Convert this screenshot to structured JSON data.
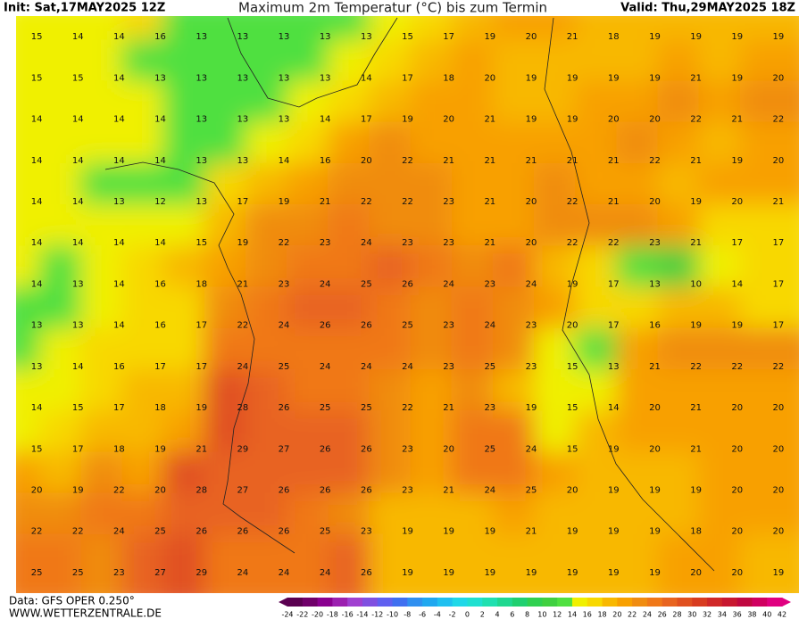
{
  "header": {
    "init": "Init: Sat,17MAY2025 12Z",
    "title": "Maximum 2m Temperatur (°C) bis zum Termin",
    "valid": "Valid: Thu,29MAY2025 18Z"
  },
  "footer": {
    "source": "Data: GFS OPER 0.250°",
    "site": "WWW.WETTERZENTRALE.DE"
  },
  "colorbar": {
    "ticks": [
      -24,
      -22,
      -20,
      -18,
      -16,
      -14,
      -12,
      -10,
      -8,
      -6,
      -4,
      -2,
      0,
      2,
      4,
      6,
      8,
      10,
      12,
      14,
      16,
      18,
      20,
      22,
      24,
      26,
      28,
      30,
      32,
      34,
      36,
      38,
      40,
      42
    ],
    "colors": [
      "#5a0050",
      "#70006a",
      "#8a0090",
      "#9c20b0",
      "#a040d0",
      "#8050e0",
      "#6060f0",
      "#4070f0",
      "#3090f0",
      "#20a8f0",
      "#20c0f0",
      "#20d8e8",
      "#20e0d0",
      "#20e0b0",
      "#20d890",
      "#20d070",
      "#30d050",
      "#40d040",
      "#50e040",
      "#f0f000",
      "#f8d800",
      "#f8b800",
      "#f8a000",
      "#f08c10",
      "#f07818",
      "#e86420",
      "#e05020",
      "#d83c20",
      "#d02828",
      "#c81830",
      "#c00840",
      "#d00060",
      "#e00080"
    ]
  },
  "map": {
    "values": [
      [
        15,
        14,
        14,
        16,
        13,
        13,
        13,
        13,
        13,
        15,
        17,
        19,
        20,
        21,
        18,
        19,
        19,
        19,
        19
      ],
      [
        15,
        15,
        14,
        13,
        13,
        13,
        13,
        13,
        14,
        17,
        18,
        20,
        19,
        19,
        19,
        19,
        21,
        19,
        20
      ],
      [
        14,
        14,
        14,
        14,
        13,
        13,
        13,
        14,
        17,
        19,
        20,
        21,
        19,
        19,
        20,
        20,
        22,
        21,
        22
      ],
      [
        14,
        14,
        14,
        14,
        13,
        13,
        14,
        16,
        20,
        22,
        21,
        21,
        21,
        21,
        21,
        22,
        21,
        19,
        20
      ],
      [
        14,
        14,
        13,
        12,
        13,
        17,
        19,
        21,
        22,
        22,
        23,
        21,
        20,
        22,
        21,
        20,
        19,
        20,
        21
      ],
      [
        14,
        14,
        14,
        14,
        15,
        19,
        22,
        23,
        24,
        23,
        23,
        21,
        20,
        22,
        22,
        23,
        21,
        17,
        17
      ],
      [
        14,
        13,
        14,
        16,
        18,
        21,
        23,
        24,
        25,
        26,
        24,
        23,
        24,
        19,
        17,
        13,
        10,
        14,
        17
      ],
      [
        13,
        13,
        14,
        16,
        17,
        22,
        24,
        26,
        26,
        25,
        23,
        24,
        23,
        20,
        17,
        16,
        19,
        19,
        17
      ],
      [
        13,
        14,
        16,
        17,
        17,
        24,
        25,
        24,
        24,
        24,
        23,
        25,
        23,
        15,
        13,
        21,
        22,
        22,
        22
      ],
      [
        14,
        15,
        17,
        18,
        19,
        28,
        26,
        25,
        25,
        22,
        21,
        23,
        19,
        15,
        14,
        20,
        21,
        20,
        20
      ],
      [
        15,
        17,
        18,
        19,
        21,
        29,
        27,
        26,
        26,
        23,
        20,
        25,
        24,
        15,
        19,
        20,
        21,
        20,
        20
      ],
      [
        20,
        19,
        22,
        20,
        28,
        27,
        26,
        26,
        26,
        23,
        21,
        24,
        25,
        20,
        19,
        19,
        19,
        20,
        20
      ],
      [
        22,
        22,
        24,
        25,
        26,
        26,
        26,
        25,
        23,
        19,
        19,
        19,
        21,
        19,
        19,
        19,
        18,
        20,
        20
      ],
      [
        25,
        25,
        23,
        27,
        29,
        24,
        24,
        24,
        26,
        19,
        19,
        19,
        19,
        19,
        19,
        19,
        20,
        20,
        19
      ]
    ]
  }
}
